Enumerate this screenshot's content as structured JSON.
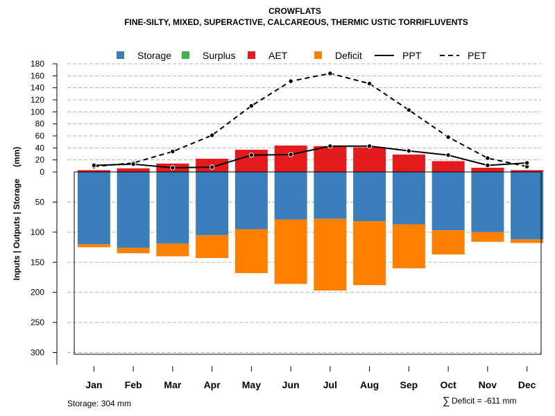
{
  "chart_data": {
    "type": "bar",
    "title": "CROWFLATS",
    "subtitle": "FINE-SILTY, MIXED, SUPERACTIVE, CALCAREOUS, THERMIC USTIC TORRIFLUVENTS",
    "ylabel": "Inputs | Outputs | Storage     (mm)",
    "categories": [
      "Jan",
      "Feb",
      "Mar",
      "Apr",
      "May",
      "Jun",
      "Jul",
      "Aug",
      "Sep",
      "Oct",
      "Nov",
      "Dec"
    ],
    "legend": [
      {
        "name": "Storage",
        "kind": "box",
        "color": "#3a7fbb"
      },
      {
        "name": "Surplus",
        "kind": "box",
        "color": "#3cb34a"
      },
      {
        "name": "AET",
        "kind": "box",
        "color": "#e41a1c"
      },
      {
        "name": "Deficit",
        "kind": "box",
        "color": "#ff7f00"
      },
      {
        "name": "PPT",
        "kind": "solid-line",
        "color": "#000000"
      },
      {
        "name": "PET",
        "kind": "dashed-line",
        "color": "#000000"
      }
    ],
    "upper_axis": {
      "ylim": [
        0,
        180
      ],
      "ticks": [
        "0",
        "20",
        "40",
        "60",
        "80",
        "100",
        "120",
        "140",
        "160",
        "180"
      ]
    },
    "lower_axis": {
      "ylim": [
        0,
        304
      ],
      "ticks": [
        "50",
        "100",
        "150",
        "200",
        "250",
        "300"
      ]
    },
    "series": [
      {
        "name": "AET",
        "values": [
          3,
          6,
          14,
          22,
          37,
          44,
          43,
          41,
          29,
          18,
          7,
          3
        ]
      },
      {
        "name": "Storage",
        "values": [
          120,
          126,
          119,
          105,
          95,
          79,
          78,
          82,
          87,
          97,
          100,
          112
        ]
      },
      {
        "name": "Deficit",
        "values": [
          5,
          9,
          21,
          38,
          73,
          107,
          119,
          106,
          73,
          40,
          16,
          6
        ]
      },
      {
        "name": "PPT",
        "values": [
          11,
          13,
          7,
          8,
          28,
          29,
          43,
          43,
          35,
          28,
          11,
          15
        ]
      },
      {
        "name": "PET",
        "values": [
          9,
          15,
          34,
          61,
          110,
          151,
          164,
          147,
          103,
          58,
          23,
          9
        ]
      }
    ]
  },
  "footer": {
    "storage_text": "Storage: 304 mm",
    "deficit_symbol": "∑",
    "deficit_text": "Deficit = -611 mm"
  },
  "colors": {
    "storage": "#3a7fbb",
    "surplus": "#3cb34a",
    "aet": "#e41a1c",
    "deficit": "#ff7f00",
    "grid": "#b0b0b0"
  }
}
